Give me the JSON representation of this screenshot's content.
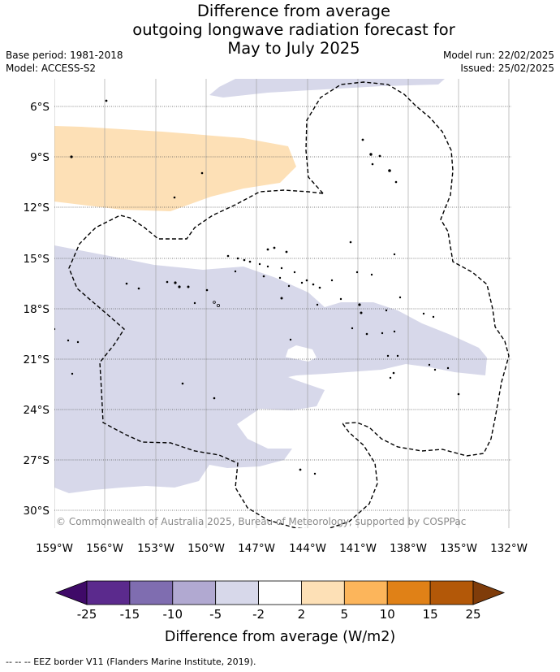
{
  "header": {
    "title_lines": [
      "Difference from average",
      "outgoing longwave radiation forecast for",
      "May to July 2025"
    ],
    "base_period": "Base period: 1981-2018",
    "model": "Model: ACCESS-S2",
    "model_run": "Model run: 22/02/2025",
    "issued": "Issued: 25/02/2025"
  },
  "map": {
    "lon_labels": [
      "159°W",
      "156°W",
      "153°W",
      "150°W",
      "147°W",
      "144°W",
      "141°W",
      "138°W",
      "135°W",
      "132°W"
    ],
    "lat_labels": [
      "6°S",
      "9°S",
      "12°S",
      "15°S",
      "18°S",
      "21°S",
      "24°S",
      "27°S",
      "30°S"
    ],
    "credit": "© Commonwealth of Australia 2025, Bureau of Meteorology, supported by COSPPac",
    "colors": {
      "minus5_to_minus2": "#d7d8ea",
      "plus2_to_plus5": "#fde0b6",
      "eez": "#000000",
      "grid": "#9a9a9a"
    }
  },
  "colorbar": {
    "ticks": [
      "-25",
      "-15",
      "-10",
      "-5",
      "-2",
      "2",
      "5",
      "10",
      "15",
      "25"
    ],
    "colors": [
      "#3f0a68",
      "#5b2a8d",
      "#7f6db0",
      "#b1a9d1",
      "#d7d8ea",
      "#ffffff",
      "#fde0b6",
      "#fcb55b",
      "#e08117",
      "#b35808",
      "#7f3c0a"
    ],
    "title": "Difference from average (W/m2)"
  },
  "footnote": "--  --  -- EEZ border V11 (Flanders Marine Institute, 2019)."
}
